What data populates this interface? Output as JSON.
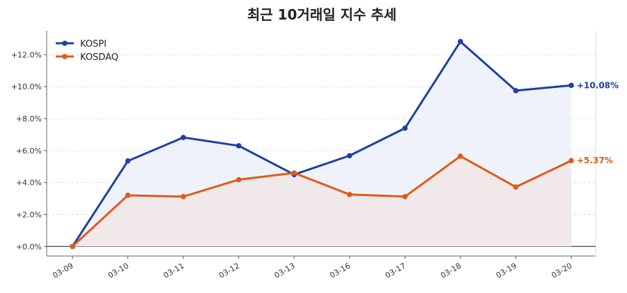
{
  "chart_data": {
    "type": "line",
    "title": "최근 10거래일 지수 추세",
    "xlabel": "",
    "ylabel": "",
    "categories": [
      "03-09",
      "03-10",
      "03-11",
      "03-12",
      "03-13",
      "03-16",
      "03-17",
      "03-18",
      "03-19",
      "03-20"
    ],
    "ylim": [
      -0.6,
      13.5
    ],
    "yticks": [
      0,
      2,
      4,
      6,
      8,
      10,
      12
    ],
    "ytick_labels": [
      "+0.0%",
      "+2.0%",
      "+4.0%",
      "+6.0%",
      "+8.0%",
      "+10.0%",
      "+12.0%"
    ],
    "grid": true,
    "legend_position": "top-left",
    "series": [
      {
        "name": "KOSPI",
        "color": "#1f3fa3",
        "fill": "#e9eefa",
        "values": [
          0.0,
          5.35,
          6.82,
          6.3,
          4.5,
          5.68,
          7.4,
          12.82,
          9.75,
          10.08
        ],
        "end_label": "+10.08%"
      },
      {
        "name": "KOSDAQ",
        "color": "#e05a1b",
        "fill": "#f1e4e4",
        "values": [
          0.0,
          3.2,
          3.12,
          4.18,
          4.6,
          3.25,
          3.12,
          5.65,
          3.72,
          5.37
        ],
        "end_label": "+5.37%"
      }
    ]
  }
}
